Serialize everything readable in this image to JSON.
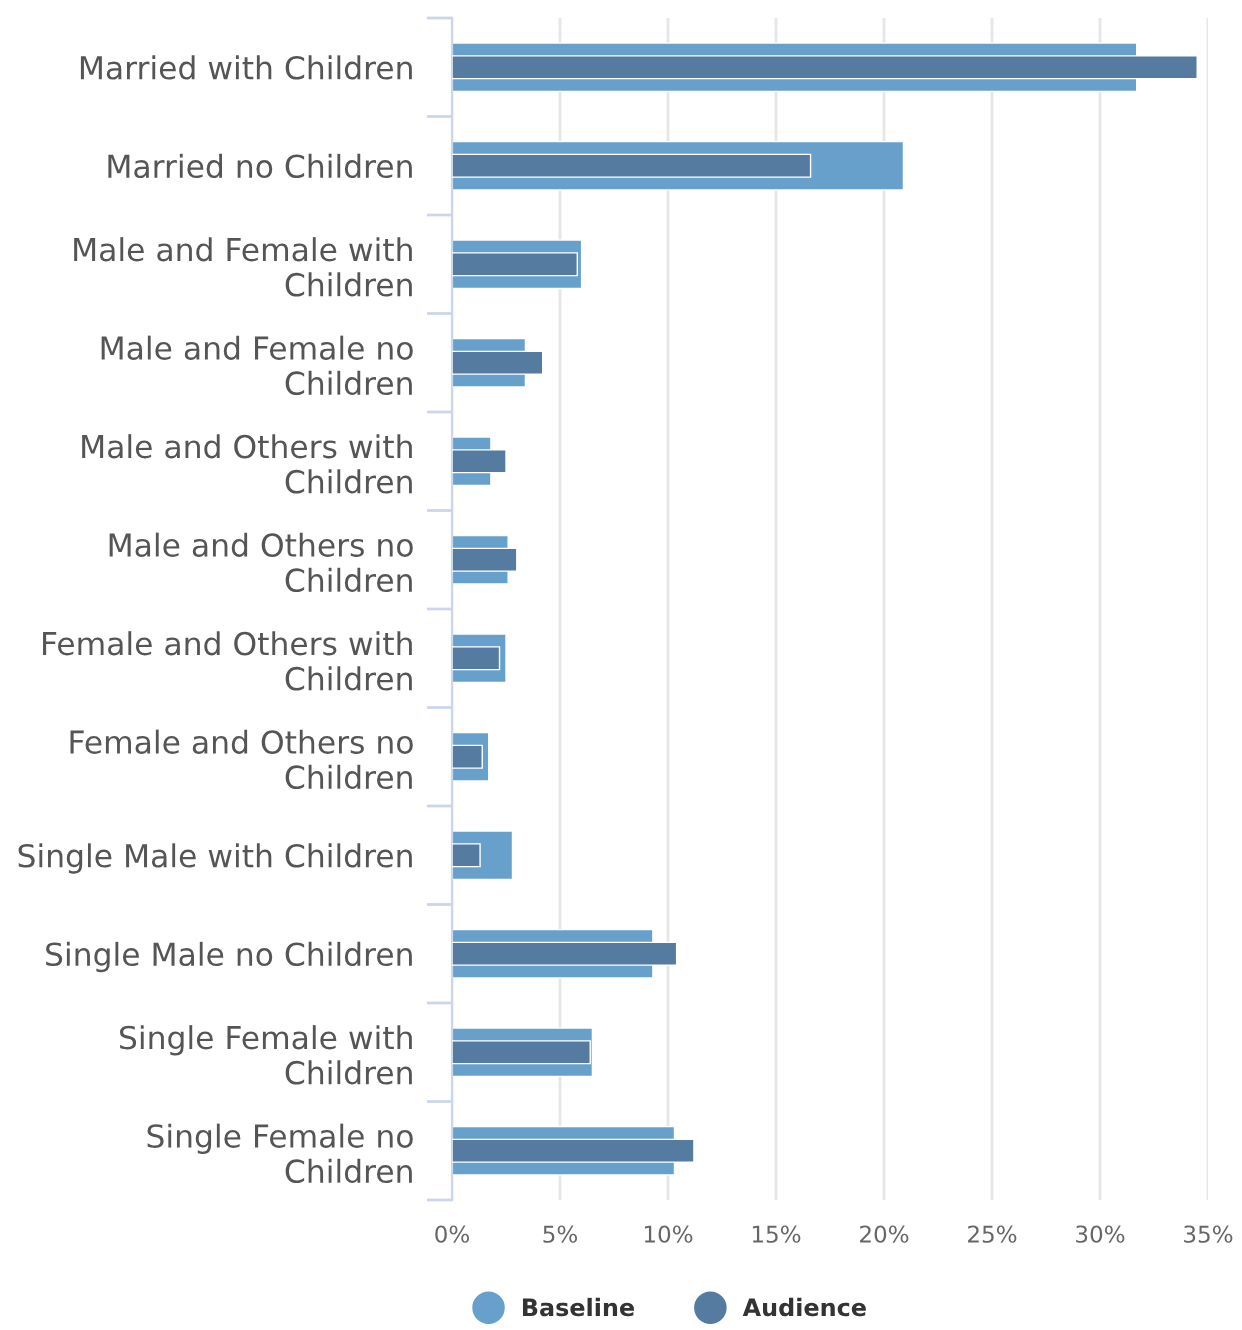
{
  "chart_data": {
    "type": "bar",
    "orientation": "horizontal",
    "categories": [
      "Married with Children",
      "Married no Children",
      "Male and Female with Children",
      "Male and Female no Children",
      "Male and Others with Children",
      "Male and Others no Children",
      "Female and Others with Children",
      "Female and Others no Children",
      "Single Male with Children",
      "Single Male no Children",
      "Single Female with Children",
      "Single Female no Children"
    ],
    "series": [
      {
        "name": "Baseline",
        "color": "#68a0cc",
        "values": [
          31.7,
          20.9,
          6.0,
          3.4,
          1.8,
          2.6,
          2.5,
          1.7,
          2.8,
          9.3,
          6.5,
          10.3
        ]
      },
      {
        "name": "Audience",
        "color": "#557ca0",
        "values": [
          34.5,
          16.6,
          5.8,
          4.2,
          2.5,
          3.0,
          2.2,
          1.4,
          1.3,
          10.4,
          6.4,
          11.2
        ]
      }
    ],
    "xlim": [
      0,
      35
    ],
    "xticks": [
      {
        "value": 0,
        "label": "0%"
      },
      {
        "value": 5,
        "label": "5%"
      },
      {
        "value": 10,
        "label": "10%"
      },
      {
        "value": 15,
        "label": "15%"
      },
      {
        "value": 20,
        "label": "20%"
      },
      {
        "value": 25,
        "label": "25%"
      },
      {
        "value": 30,
        "label": "30%"
      },
      {
        "value": 35,
        "label": "35%"
      }
    ],
    "grid": "x",
    "legend": "bottom"
  }
}
